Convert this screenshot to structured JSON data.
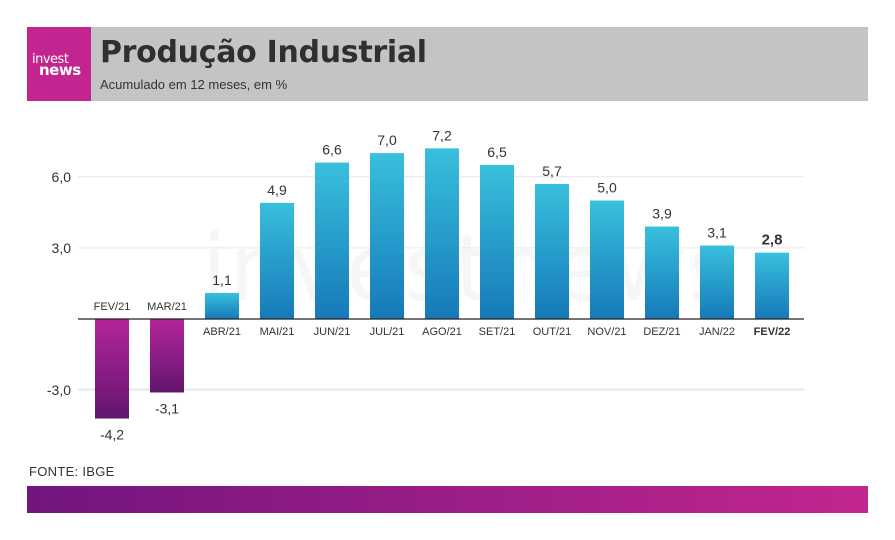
{
  "header": {
    "logo_line1": "invest",
    "logo_line2": "news",
    "title": "Produção Industrial",
    "subtitle": "Acumulado em 12 meses, em %"
  },
  "source": "FONTE: IBGE",
  "chart_data": {
    "type": "bar",
    "categories": [
      "FEV/21",
      "MAR/21",
      "ABR/21",
      "MAI/21",
      "JUN/21",
      "JUL/21",
      "AGO/21",
      "SET/21",
      "OUT/21",
      "NOV/21",
      "DEZ/21",
      "JAN/22",
      "FEV/22"
    ],
    "values": [
      -4.2,
      -3.1,
      1.1,
      4.9,
      6.6,
      7.0,
      7.2,
      6.5,
      5.7,
      5.0,
      3.9,
      3.1,
      2.8
    ],
    "value_labels": [
      "-4,2",
      "-3,1",
      "1,1",
      "4,9",
      "6,6",
      "7,0",
      "7,2",
      "6,5",
      "5,7",
      "5,0",
      "3,9",
      "3,1",
      "2,8"
    ],
    "highlight_category": "FEV/22",
    "y_ticks": [
      6.0,
      3.0,
      -3.0
    ],
    "y_tick_labels": [
      "6,0",
      "3,0",
      "-3,0"
    ],
    "ylim": [
      -4.8,
      8.0
    ],
    "grid": true,
    "watermark": "investnews",
    "colors": {
      "positive_top": "#38c0dc",
      "positive_bottom": "#1679b9",
      "negative_top": "#b3259a",
      "negative_bottom": "#63156f",
      "grid": "#e6e6e6",
      "axis": "#222222",
      "text": "#333333"
    }
  }
}
